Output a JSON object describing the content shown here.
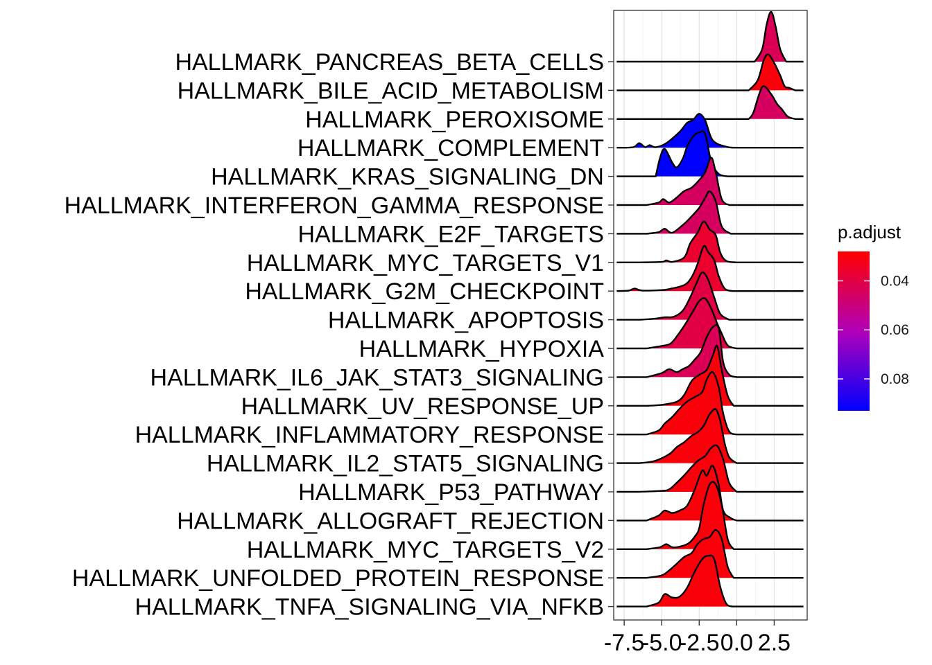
{
  "chart_data": {
    "type": "ridgeline",
    "xlim": [
      -8.2,
      4.7
    ],
    "x_ticks": [
      -7.5,
      -5.0,
      -2.5,
      0.0,
      2.5
    ],
    "x_tick_labels": [
      "-7.5",
      "-5.0",
      "-2.5",
      "0.0",
      "2.5"
    ],
    "grid": true,
    "legend": {
      "title": "p.adjust",
      "position": "right",
      "ticks": [
        0.04,
        0.06,
        0.08
      ],
      "tick_labels": [
        "0.04",
        "0.06",
        "0.08"
      ],
      "range": [
        0.028,
        0.093
      ],
      "colors": {
        "low": "#ff0000",
        "mid": "#b000b8",
        "high": "#0000ff"
      }
    },
    "series": [
      {
        "name": "HALLMARK_PANCREAS_BETA_CELLS",
        "p_adjust": 0.043,
        "x": [
          1.2,
          1.7,
          2.0,
          2.3,
          2.6,
          2.9,
          3.3
        ],
        "density": [
          0,
          0.25,
          0.75,
          1.0,
          0.7,
          0.25,
          0
        ]
      },
      {
        "name": "HALLMARK_BILE_ACID_METABOLISM",
        "p_adjust": 0.03,
        "x": [
          0.8,
          1.4,
          1.8,
          2.1,
          2.5,
          2.9,
          3.2,
          3.5,
          3.9
        ],
        "density": [
          0,
          0.2,
          0.6,
          0.72,
          0.55,
          0.3,
          0.08,
          0.05,
          0
        ]
      },
      {
        "name": "HALLMARK_PEROXISOME",
        "p_adjust": 0.045,
        "x": [
          0.8,
          1.1,
          1.5,
          1.8,
          2.3,
          2.7,
          3.0,
          3.4,
          3.9
        ],
        "density": [
          0,
          0.12,
          0.5,
          0.66,
          0.5,
          0.3,
          0.2,
          0.05,
          0
        ]
      },
      {
        "name": "HALLMARK_COMPLEMENT",
        "p_adjust": 0.093,
        "x": [
          -8.0,
          -6.9,
          -6.5,
          -6.1,
          -5.8,
          -5.4,
          -4.7,
          -3.8,
          -3.3,
          -2.9,
          -2.5,
          -2.1,
          -1.6,
          -0.7,
          0.0
        ],
        "density": [
          0,
          0.01,
          0.09,
          0.01,
          0.05,
          0.01,
          0.09,
          0.32,
          0.5,
          0.56,
          0.68,
          0.55,
          0.15,
          0.02,
          0
        ]
      },
      {
        "name": "HALLMARK_KRAS_SIGNALING_DN",
        "p_adjust": 0.093,
        "x": [
          -5.4,
          -5.1,
          -4.8,
          -4.3,
          -4.0,
          -3.6,
          -3.3,
          -2.9,
          -2.5,
          -2.1,
          -1.7,
          -1.2,
          -0.6
        ],
        "density": [
          0,
          0.38,
          0.55,
          0.28,
          0.18,
          0.35,
          0.6,
          0.8,
          0.88,
          0.85,
          0.3,
          0.05,
          0
        ]
      },
      {
        "name": "HALLMARK_INTERFERON_GAMMA_RESPONSE",
        "p_adjust": 0.045,
        "x": [
          -6.0,
          -5.2,
          -4.9,
          -4.5,
          -4.0,
          -3.5,
          -3.0,
          -2.5,
          -2.1,
          -1.7,
          -1.4,
          -1.0,
          -0.5
        ],
        "density": [
          0,
          0.05,
          0.12,
          0.05,
          0.15,
          0.28,
          0.35,
          0.5,
          0.66,
          0.95,
          0.66,
          0.12,
          0
        ]
      },
      {
        "name": "HALLMARK_E2F_TARGETS",
        "p_adjust": 0.045,
        "x": [
          -6.0,
          -5.2,
          -4.8,
          -4.3,
          -3.5,
          -3.0,
          -2.5,
          -2.1,
          -1.8,
          -1.4,
          -1.0,
          -0.4
        ],
        "density": [
          0,
          0.03,
          0.1,
          0.02,
          0.2,
          0.35,
          0.52,
          0.72,
          0.85,
          0.65,
          0.15,
          0
        ]
      },
      {
        "name": "HALLMARK_MYC_TARGETS_V1",
        "p_adjust": 0.036,
        "x": [
          -6.5,
          -5.0,
          -4.7,
          -4.3,
          -3.5,
          -3.1,
          -2.6,
          -2.2,
          -1.8,
          -1.4,
          -1.1,
          -0.7,
          0.0
        ],
        "density": [
          0,
          0.01,
          0.04,
          0.01,
          0.1,
          0.38,
          0.6,
          0.82,
          0.66,
          0.55,
          0.2,
          0.03,
          0
        ]
      },
      {
        "name": "HALLMARK_G2M_CHECKPOINT",
        "p_adjust": 0.036,
        "x": [
          -8.0,
          -7.2,
          -6.8,
          -6.3,
          -5.0,
          -4.5,
          -3.5,
          -3.0,
          -2.6,
          -2.2,
          -1.9,
          -1.5,
          -1.2,
          -0.8,
          -0.3
        ],
        "density": [
          0,
          0.01,
          0.05,
          0.01,
          0.02,
          0.04,
          0.12,
          0.28,
          0.55,
          0.9,
          0.78,
          0.62,
          0.3,
          0.05,
          0
        ]
      },
      {
        "name": "HALLMARK_APOPTOSIS",
        "p_adjust": 0.04,
        "x": [
          -6.5,
          -5.5,
          -4.8,
          -4.2,
          -3.6,
          -3.1,
          -2.7,
          -2.3,
          -1.9,
          -1.5,
          -1.1,
          -0.5
        ],
        "density": [
          0,
          0.02,
          0.05,
          0.06,
          0.18,
          0.45,
          0.72,
          0.95,
          0.8,
          0.45,
          0.12,
          0
        ]
      },
      {
        "name": "HALLMARK_HYPOXIA",
        "p_adjust": 0.04,
        "x": [
          -6.0,
          -5.0,
          -4.4,
          -3.9,
          -3.4,
          -2.9,
          -2.5,
          -2.1,
          -1.7,
          -1.3,
          -1.0,
          -0.6,
          0.0
        ],
        "density": [
          0,
          0.05,
          0.1,
          0.28,
          0.5,
          0.75,
          0.95,
          1.0,
          0.8,
          0.5,
          0.3,
          0.06,
          0
        ]
      },
      {
        "name": "HALLMARK_IL6_JAK_STAT3_SIGNALING",
        "p_adjust": 0.043,
        "x": [
          -6.0,
          -5.0,
          -4.5,
          -4.0,
          -3.6,
          -3.2,
          -2.8,
          -2.4,
          -2.0,
          -1.6,
          -1.2,
          -0.9,
          -0.5,
          0.0
        ],
        "density": [
          0,
          0.08,
          0.16,
          0.1,
          0.16,
          0.22,
          0.35,
          0.5,
          0.8,
          1.0,
          0.98,
          0.3,
          0.05,
          0
        ]
      },
      {
        "name": "HALLMARK_UV_RESPONSE_UP",
        "p_adjust": 0.03,
        "x": [
          -6.0,
          -5.0,
          -4.0,
          -3.5,
          -3.0,
          -2.5,
          -2.0,
          -1.6,
          -1.3,
          -1.0,
          -0.6,
          -0.2
        ],
        "density": [
          0,
          0.02,
          0.08,
          0.22,
          0.5,
          0.62,
          0.72,
          1.0,
          1.2,
          0.72,
          0.2,
          0
        ]
      },
      {
        "name": "HALLMARK_INFLAMMATORY_RESPONSE",
        "p_adjust": 0.03,
        "x": [
          -6.0,
          -5.2,
          -4.8,
          -4.3,
          -3.8,
          -3.3,
          -2.8,
          -2.3,
          -2.0,
          -1.6,
          -1.2,
          -0.9,
          -0.5,
          0.0
        ],
        "density": [
          0,
          0.08,
          0.22,
          0.35,
          0.52,
          0.66,
          0.75,
          0.85,
          1.1,
          1.25,
          0.95,
          0.42,
          0.06,
          0
        ]
      },
      {
        "name": "HALLMARK_IL2_STAT5_SIGNALING",
        "p_adjust": 0.03,
        "x": [
          -6.5,
          -5.5,
          -4.5,
          -4.0,
          -3.5,
          -3.0,
          -2.6,
          -2.2,
          -1.8,
          -1.4,
          -1.1,
          -0.8,
          -0.5,
          0.0
        ],
        "density": [
          0,
          0.04,
          0.18,
          0.32,
          0.42,
          0.55,
          0.62,
          0.75,
          0.98,
          1.08,
          0.85,
          0.4,
          0.12,
          0
        ]
      },
      {
        "name": "HALLMARK_P53_PATHWAY",
        "p_adjust": 0.03,
        "x": [
          -6.5,
          -5.0,
          -4.5,
          -4.0,
          -3.5,
          -3.0,
          -2.6,
          -2.1,
          -1.7,
          -1.3,
          -0.9,
          -0.5,
          0.0
        ],
        "density": [
          0,
          0.02,
          0.05,
          0.18,
          0.33,
          0.5,
          0.62,
          0.72,
          0.88,
          0.92,
          0.65,
          0.18,
          0
        ]
      },
      {
        "name": "HALLMARK_ALLOGRAFT_REJECTION",
        "p_adjust": 0.03,
        "x": [
          -6.0,
          -5.2,
          -4.8,
          -4.3,
          -3.8,
          -3.3,
          -2.8,
          -2.3,
          -2.0,
          -1.6,
          -1.2,
          -0.9,
          -0.4,
          0.0
        ],
        "density": [
          0,
          0.1,
          0.2,
          0.15,
          0.2,
          0.3,
          0.62,
          1.0,
          0.9,
          1.1,
          0.72,
          0.2,
          0.05,
          0
        ]
      },
      {
        "name": "HALLMARK_MYC_TARGETS_V2",
        "p_adjust": 0.03,
        "x": [
          -6.0,
          -5.1,
          -4.7,
          -4.3,
          -3.8,
          -3.2,
          -2.8,
          -2.5,
          -2.2,
          -1.8,
          -1.4,
          -1.0,
          -0.6,
          -0.2
        ],
        "density": [
          0,
          0.04,
          0.1,
          0.04,
          0.05,
          0.12,
          0.25,
          0.42,
          0.9,
          1.3,
          1.3,
          0.9,
          0.2,
          0
        ]
      },
      {
        "name": "HALLMARK_UNFOLDED_PROTEIN_RESPONSE",
        "p_adjust": 0.03,
        "x": [
          -6.0,
          -5.0,
          -4.5,
          -4.0,
          -3.5,
          -3.0,
          -2.6,
          -2.2,
          -1.8,
          -1.4,
          -1.0,
          -0.6,
          -0.2
        ],
        "density": [
          0,
          0.05,
          0.15,
          0.28,
          0.42,
          0.5,
          0.68,
          0.78,
          0.82,
          0.96,
          0.78,
          0.22,
          0
        ]
      },
      {
        "name": "HALLMARK_TNFA_SIGNALING_VIA_NFKB",
        "p_adjust": 0.03,
        "x": [
          -6.0,
          -5.2,
          -4.8,
          -4.3,
          -3.8,
          -3.3,
          -2.8,
          -2.3,
          -1.9,
          -1.5,
          -1.1,
          -0.7,
          -0.3
        ],
        "density": [
          0,
          0.08,
          0.25,
          0.18,
          0.2,
          0.38,
          0.7,
          0.95,
          1.02,
          0.95,
          0.4,
          0.06,
          0
        ]
      }
    ]
  }
}
